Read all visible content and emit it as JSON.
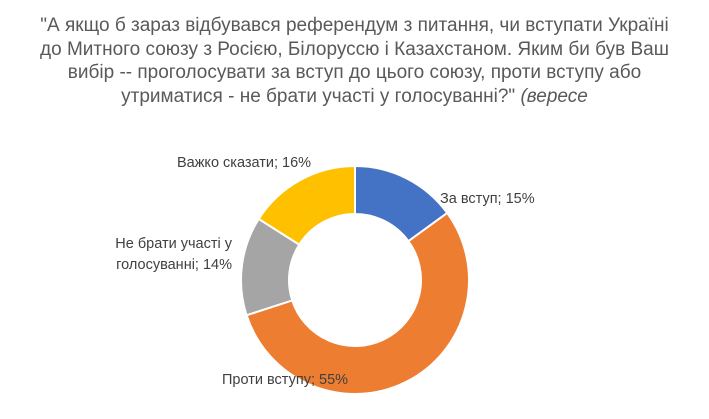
{
  "title": {
    "line1": "\"А якщо б зараз відбувався референдум з питання, чи вступати Україні",
    "line2": "до Митного союзу з Росією, Білоруссю і Казахстаном. Яким би був Ваш",
    "line3": "вибір  -- проголосувати за вступ до цього союзу, проти вступу або",
    "line4_main": "утриматися - не брати участі у голосуванні?\"",
    "line4_italic": "(вересе"
  },
  "chart_data": {
    "type": "pie",
    "donut": true,
    "slices": [
      {
        "label": "За вступ",
        "value": 15,
        "color": "#4472C4",
        "display_label": [
          "За вступ; 15%"
        ]
      },
      {
        "label": "Проти вступу",
        "value": 55,
        "color": "#ED7D31",
        "display_label": [
          "Проти вступу; 55%"
        ]
      },
      {
        "label": "Не брати участі у голосуванні",
        "value": 14,
        "color": "#A5A5A5",
        "display_label": [
          "Не брати участі у",
          "голосуванні; 14%"
        ]
      },
      {
        "label": "Важко сказати",
        "value": 16,
        "color": "#FFC000",
        "display_label": [
          "Важко сказати; 16%"
        ]
      }
    ]
  }
}
